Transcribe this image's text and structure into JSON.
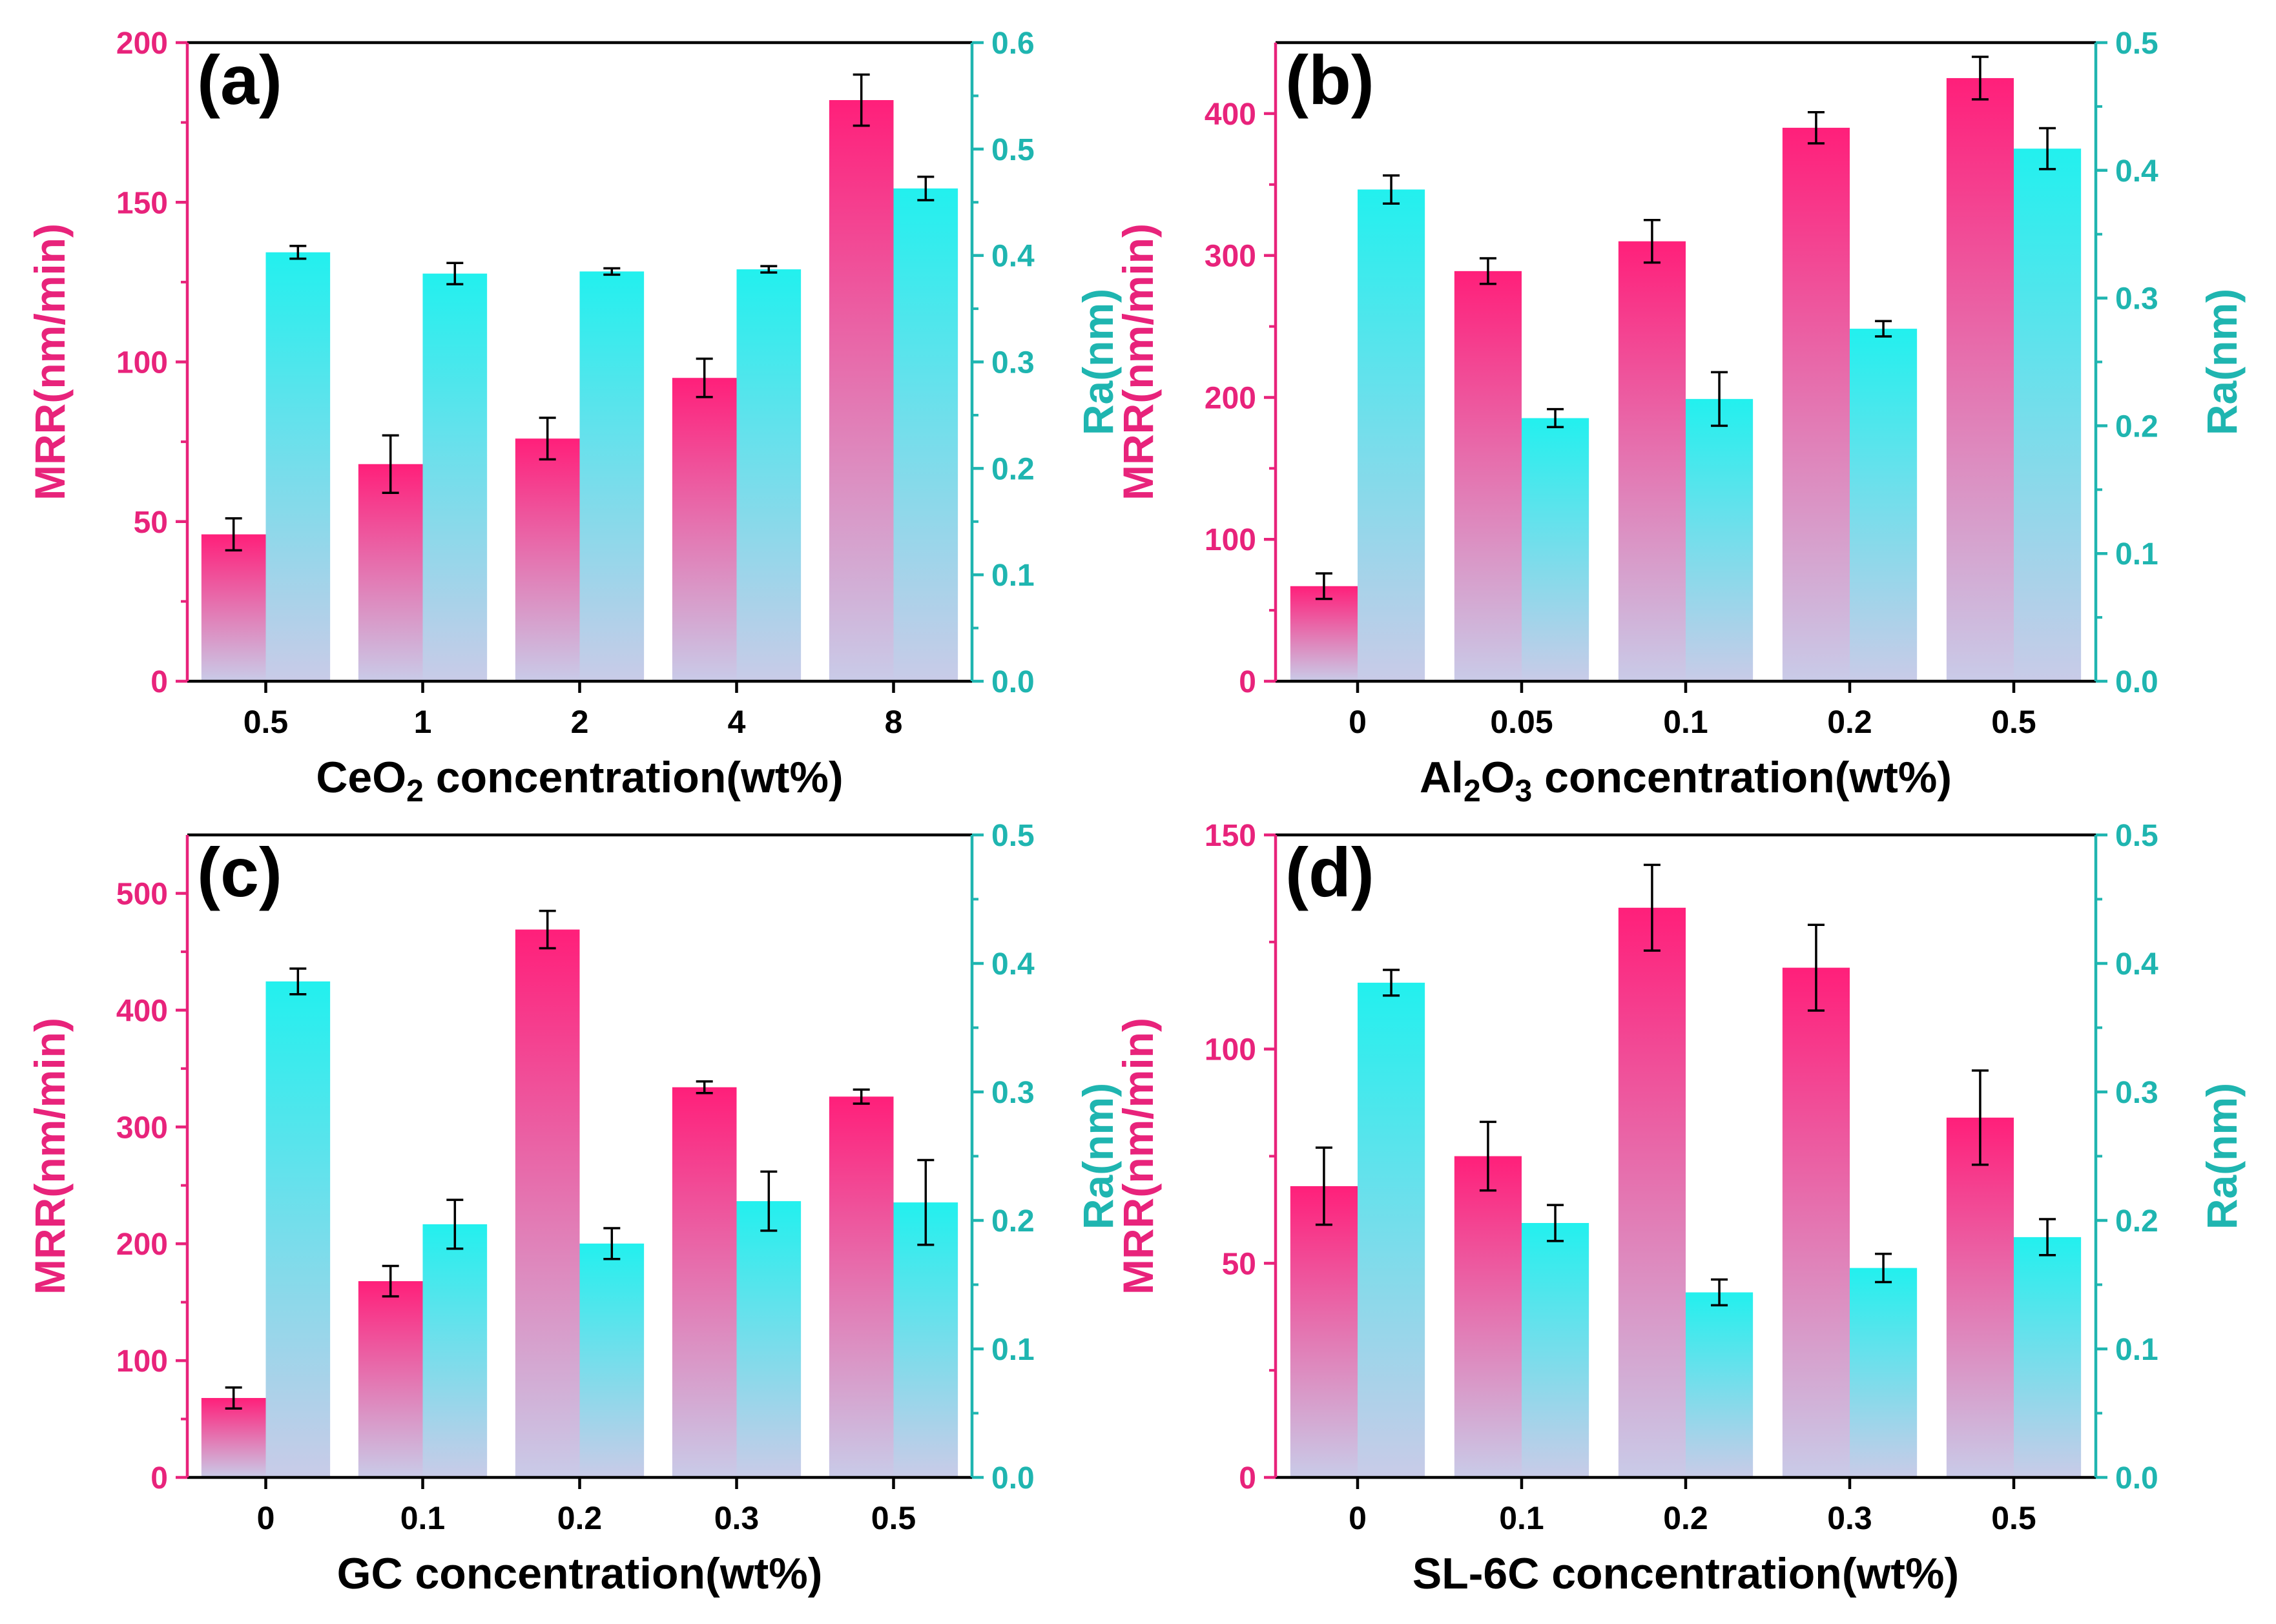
{
  "colors": {
    "left_axis": "#e8237b",
    "right_axis": "#1fb5b0",
    "mrr_top": "#ff1f7a",
    "ra_top": "#22f0ee",
    "bar_bottom": "#c9cbe8",
    "axis_black": "#000000",
    "error": "#000000"
  },
  "chart_data": [
    {
      "type": "bar",
      "panel_label": "(a)",
      "categories": [
        "0.5",
        "1",
        "2",
        "4",
        "8"
      ],
      "xlabel": {
        "main": "CeO",
        "sub": "2",
        "rest": " concentration(wt%)"
      },
      "ylabel_left": "MRR(nm/min)",
      "ylabel_right": "Ra(nm)",
      "ylim_left": [
        0,
        200
      ],
      "ylim_right": [
        0,
        0.6
      ],
      "yticks_left": [
        "0",
        "50",
        "100",
        "150",
        "200"
      ],
      "yticks_right": [
        "0.0",
        "0.1",
        "0.2",
        "0.3",
        "0.4",
        "0.5",
        "0.6"
      ],
      "series": [
        {
          "name": "MRR",
          "axis": "left",
          "values": [
            46,
            68,
            76,
            95,
            182
          ],
          "errors": [
            5,
            9,
            6.5,
            6,
            8
          ]
        },
        {
          "name": "Ra",
          "axis": "right",
          "values": [
            0.403,
            0.383,
            0.385,
            0.387,
            0.463
          ],
          "errors": [
            0.006,
            0.01,
            0.003,
            0.003,
            0.011
          ]
        }
      ]
    },
    {
      "type": "bar",
      "panel_label": "(b)",
      "categories": [
        "0",
        "0.05",
        "0.1",
        "0.2",
        "0.5"
      ],
      "xlabel": {
        "main": "Al",
        "sub": "2",
        "main2": "O",
        "sub2": "3",
        "rest": " concentration(wt%)"
      },
      "ylabel_left": "MRR(nm/min)",
      "ylabel_right": "Ra(nm)",
      "ylim_left": [
        0,
        450
      ],
      "ylim_right": [
        0,
        0.5
      ],
      "yticks_left": [
        "0",
        "100",
        "200",
        "300",
        "400"
      ],
      "yticks_right": [
        "0.0",
        "0.1",
        "0.2",
        "0.3",
        "0.4",
        "0.5"
      ],
      "series": [
        {
          "name": "MRR",
          "axis": "left",
          "values": [
            67,
            289,
            310,
            390,
            425
          ],
          "errors": [
            9,
            9,
            15,
            11,
            15
          ]
        },
        {
          "name": "Ra",
          "axis": "right",
          "values": [
            0.385,
            0.206,
            0.221,
            0.276,
            0.417
          ],
          "errors": [
            0.011,
            0.007,
            0.021,
            0.006,
            0.016
          ]
        }
      ]
    },
    {
      "type": "bar",
      "panel_label": "(c)",
      "categories": [
        "0",
        "0.1",
        "0.2",
        "0.3",
        "0.5"
      ],
      "xlabel": {
        "main": "GC concentration(wt%)"
      },
      "ylabel_left": "MRR(nm/min)",
      "ylabel_right": "Ra(nm)",
      "ylim_left": [
        0,
        550
      ],
      "ylim_right": [
        0,
        0.5
      ],
      "yticks_left": [
        "0",
        "100",
        "200",
        "300",
        "400",
        "500"
      ],
      "yticks_right": [
        "0.0",
        "0.1",
        "0.2",
        "0.3",
        "0.4",
        "0.5"
      ],
      "series": [
        {
          "name": "MRR",
          "axis": "left",
          "values": [
            68,
            168,
            469,
            334,
            326
          ],
          "errors": [
            9,
            13,
            16,
            5,
            6
          ]
        },
        {
          "name": "Ra",
          "axis": "right",
          "values": [
            0.386,
            0.197,
            0.182,
            0.215,
            0.214
          ],
          "errors": [
            0.01,
            0.019,
            0.012,
            0.023,
            0.033
          ]
        }
      ]
    },
    {
      "type": "bar",
      "panel_label": "(d)",
      "categories": [
        "0",
        "0.1",
        "0.2",
        "0.3",
        "0.5"
      ],
      "xlabel": {
        "main": "SL-6C concentration(wt%)"
      },
      "ylabel_left": "MRR(nm/min)",
      "ylabel_right": "Ra(nm)",
      "ylim_left": [
        0,
        150
      ],
      "ylim_right": [
        0,
        0.5
      ],
      "yticks_left": [
        "0",
        "50",
        "100",
        "150"
      ],
      "yticks_right": [
        "0.0",
        "0.1",
        "0.2",
        "0.3",
        "0.4",
        "0.5"
      ],
      "series": [
        {
          "name": "MRR",
          "axis": "left",
          "values": [
            68,
            75,
            133,
            119,
            84
          ],
          "errors": [
            9,
            8,
            10,
            10,
            11
          ]
        },
        {
          "name": "Ra",
          "axis": "right",
          "values": [
            0.385,
            0.198,
            0.144,
            0.163,
            0.187
          ],
          "errors": [
            0.01,
            0.014,
            0.01,
            0.011,
            0.014
          ]
        }
      ]
    }
  ]
}
